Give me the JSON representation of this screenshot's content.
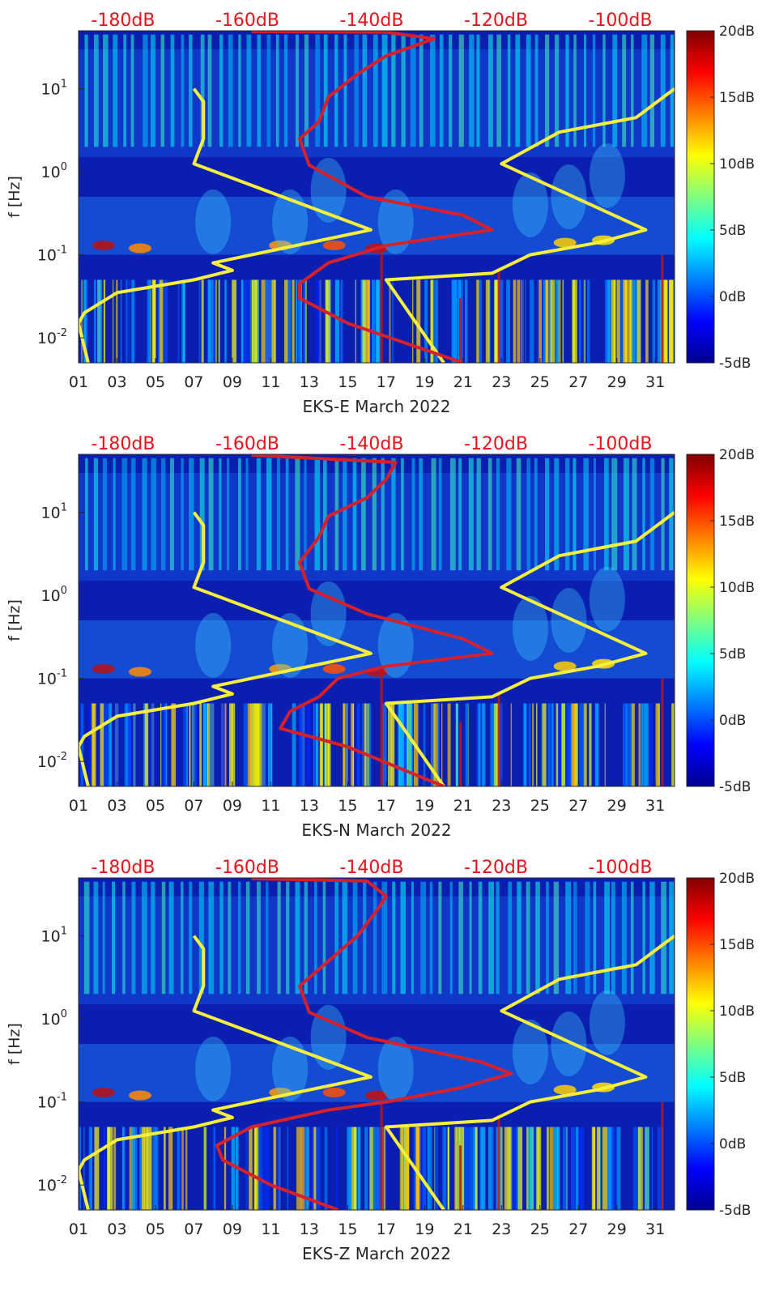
{
  "colors": {
    "yellow_model": "#f7ef3c",
    "red_model": "#d8202a",
    "top_axis_text": "#e8141b",
    "spectrogram_base": "#0a1fb0"
  },
  "chart_data": [
    {
      "type": "heatmap",
      "panel": "EKS-E",
      "xlabel": "EKS-E March 2022",
      "ylabel": "f [Hz]",
      "xlim": [
        1,
        32
      ],
      "ylim": [
        0.005,
        50
      ],
      "yscale": "log",
      "x_ticks": [
        "01",
        "03",
        "05",
        "07",
        "09",
        "11",
        "13",
        "15",
        "17",
        "19",
        "21",
        "23",
        "25",
        "27",
        "29",
        "31"
      ],
      "y_ticks": [
        "10-2",
        "10-1",
        "100",
        "101"
      ],
      "top_labels": [
        "-180dB",
        "-160dB",
        "-140dB",
        "-120dB",
        "-100dB"
      ],
      "colorbar": {
        "labels": [
          "20dB",
          "15dB",
          "10dB",
          "5dB",
          "0dB",
          "-5dB"
        ],
        "range": [
          -5,
          20
        ]
      },
      "yellow_curve": [
        [
          1.5,
          0.005
        ],
        [
          1.0,
          0.015
        ],
        [
          1.3,
          0.02
        ],
        [
          3,
          0.035
        ],
        [
          7,
          0.05
        ],
        [
          9,
          0.065
        ],
        [
          8,
          0.08
        ],
        [
          16.2,
          0.2
        ],
        [
          7,
          1.25
        ],
        [
          7.5,
          2.5
        ],
        [
          7.5,
          7
        ],
        [
          7,
          10
        ]
      ],
      "yellow_curve_2": [
        [
          20,
          0.005
        ],
        [
          17,
          0.05
        ],
        [
          22.5,
          0.06
        ],
        [
          24.5,
          0.1
        ],
        [
          28,
          0.14
        ],
        [
          30.5,
          0.2
        ],
        [
          23,
          1.25
        ],
        [
          26,
          3
        ],
        [
          30,
          4.5
        ],
        [
          32,
          10
        ]
      ],
      "red_curve": [
        [
          21,
          0.005
        ],
        [
          15,
          0.015
        ],
        [
          12.5,
          0.03
        ],
        [
          12.5,
          0.045
        ],
        [
          14,
          0.08
        ],
        [
          17,
          0.13
        ],
        [
          22.5,
          0.2
        ],
        [
          21,
          0.3
        ],
        [
          16,
          0.5
        ],
        [
          13,
          1.2
        ],
        [
          12.5,
          2.5
        ],
        [
          13.5,
          4
        ],
        [
          14,
          8
        ],
        [
          15.5,
          15
        ],
        [
          17,
          25
        ],
        [
          19.5,
          40
        ],
        [
          17,
          48
        ],
        [
          10,
          49
        ]
      ]
    },
    {
      "type": "heatmap",
      "panel": "EKS-N",
      "xlabel": "EKS-N March 2022",
      "ylabel": "f [Hz]",
      "xlim": [
        1,
        32
      ],
      "ylim": [
        0.005,
        50
      ],
      "yscale": "log",
      "x_ticks": [
        "01",
        "03",
        "05",
        "07",
        "09",
        "11",
        "13",
        "15",
        "17",
        "19",
        "21",
        "23",
        "25",
        "27",
        "29",
        "31"
      ],
      "y_ticks": [
        "10-2",
        "10-1",
        "100",
        "101"
      ],
      "top_labels": [
        "-180dB",
        "-160dB",
        "-140dB",
        "-120dB",
        "-100dB"
      ],
      "colorbar": {
        "labels": [
          "20dB",
          "15dB",
          "10dB",
          "5dB",
          "0dB",
          "-5dB"
        ],
        "range": [
          -5,
          20
        ]
      },
      "yellow_curve": [
        [
          1.5,
          0.005
        ],
        [
          1.0,
          0.015
        ],
        [
          1.3,
          0.02
        ],
        [
          3,
          0.035
        ],
        [
          7,
          0.05
        ],
        [
          9,
          0.065
        ],
        [
          8,
          0.08
        ],
        [
          16.2,
          0.2
        ],
        [
          7,
          1.25
        ],
        [
          7.5,
          2.5
        ],
        [
          7.5,
          7
        ],
        [
          7,
          10
        ]
      ],
      "yellow_curve_2": [
        [
          20,
          0.005
        ],
        [
          17,
          0.05
        ],
        [
          22.5,
          0.06
        ],
        [
          24.5,
          0.1
        ],
        [
          28,
          0.14
        ],
        [
          30.5,
          0.2
        ],
        [
          23,
          1.25
        ],
        [
          26,
          3
        ],
        [
          30,
          4.5
        ],
        [
          32,
          10
        ]
      ],
      "red_curve": [
        [
          20,
          0.005
        ],
        [
          15,
          0.015
        ],
        [
          11.5,
          0.025
        ],
        [
          12,
          0.04
        ],
        [
          13.5,
          0.06
        ],
        [
          14.5,
          0.1
        ],
        [
          17,
          0.14
        ],
        [
          22.5,
          0.2
        ],
        [
          21,
          0.3
        ],
        [
          16,
          0.6
        ],
        [
          13,
          1.2
        ],
        [
          12.5,
          2.5
        ],
        [
          13.5,
          5
        ],
        [
          14,
          9
        ],
        [
          16,
          15
        ],
        [
          17,
          25
        ],
        [
          17.5,
          40
        ],
        [
          10,
          49
        ]
      ]
    },
    {
      "type": "heatmap",
      "panel": "EKS-Z",
      "xlabel": "EKS-Z March 2022",
      "ylabel": "f [Hz]",
      "xlim": [
        1,
        32
      ],
      "ylim": [
        0.005,
        50
      ],
      "yscale": "log",
      "x_ticks": [
        "01",
        "03",
        "05",
        "07",
        "09",
        "11",
        "13",
        "15",
        "17",
        "19",
        "21",
        "23",
        "25",
        "27",
        "29",
        "31"
      ],
      "y_ticks": [
        "10-2",
        "10-1",
        "100",
        "101"
      ],
      "top_labels": [
        "-180dB",
        "-160dB",
        "-140dB",
        "-120dB",
        "-100dB"
      ],
      "colorbar": {
        "labels": [
          "20dB",
          "15dB",
          "10dB",
          "5dB",
          "0dB",
          "-5dB"
        ],
        "range": [
          -5,
          20
        ]
      },
      "yellow_curve": [
        [
          1.5,
          0.005
        ],
        [
          1.0,
          0.015
        ],
        [
          1.3,
          0.02
        ],
        [
          3,
          0.035
        ],
        [
          7,
          0.05
        ],
        [
          9,
          0.065
        ],
        [
          8,
          0.08
        ],
        [
          16.2,
          0.2
        ],
        [
          7,
          1.25
        ],
        [
          7.5,
          2.5
        ],
        [
          7.5,
          7
        ],
        [
          7,
          10
        ]
      ],
      "yellow_curve_2": [
        [
          20,
          0.005
        ],
        [
          17,
          0.05
        ],
        [
          22.5,
          0.06
        ],
        [
          24.5,
          0.1
        ],
        [
          28,
          0.14
        ],
        [
          30.5,
          0.2
        ],
        [
          23,
          1.25
        ],
        [
          26,
          3
        ],
        [
          30,
          4.5
        ],
        [
          32,
          10
        ]
      ],
      "red_curve": [
        [
          14.5,
          0.005
        ],
        [
          11,
          0.01
        ],
        [
          8.5,
          0.02
        ],
        [
          8.2,
          0.03
        ],
        [
          10,
          0.05
        ],
        [
          14,
          0.08
        ],
        [
          17,
          0.1
        ],
        [
          21,
          0.15
        ],
        [
          23.5,
          0.22
        ],
        [
          22,
          0.3
        ],
        [
          16,
          0.6
        ],
        [
          13,
          1.2
        ],
        [
          12.5,
          2.5
        ],
        [
          14,
          5
        ],
        [
          15.5,
          10
        ],
        [
          16.5,
          20
        ],
        [
          17,
          30
        ],
        [
          16,
          46
        ],
        [
          10,
          49
        ]
      ]
    }
  ]
}
